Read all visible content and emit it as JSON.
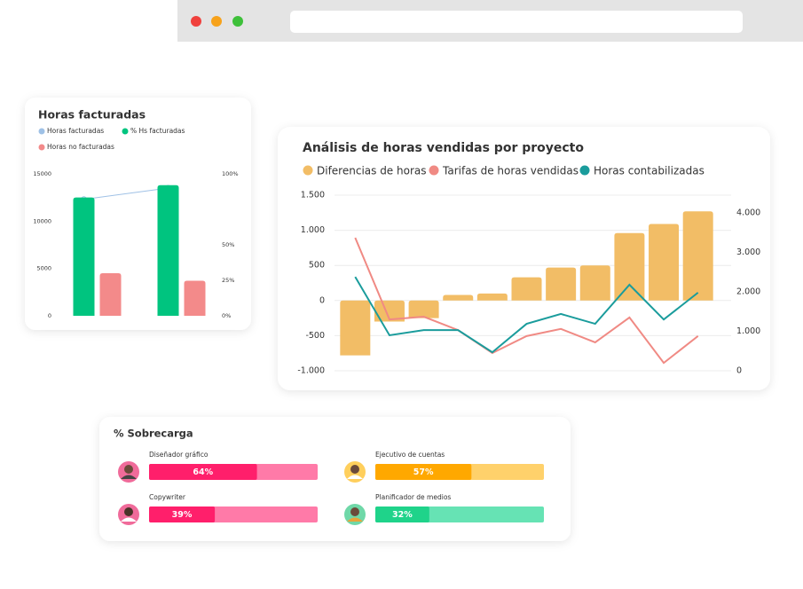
{
  "chart_data": [
    {
      "type": "bar",
      "title": "Horas facturadas",
      "categories": [
        null,
        null
      ],
      "series": [
        {
          "name": "Horas facturadas",
          "color": "#9fc1e6",
          "type": "line",
          "values": [
            12300,
            13500
          ]
        },
        {
          "name": "% Hs facturadas",
          "color": "#00c47f",
          "values": [
            12500,
            13800
          ]
        },
        {
          "name": "Horas no facturadas",
          "color": "#f38a8a",
          "values": [
            4500,
            3700
          ]
        }
      ],
      "ylim": [
        0,
        15000
      ],
      "yticks": [
        0,
        5000,
        10000,
        15000
      ],
      "y2lim": [
        0,
        100
      ],
      "y2ticks": [
        {
          "value": 0,
          "label": "0%"
        },
        {
          "value": 25,
          "label": "25%"
        },
        {
          "value": 50,
          "label": "50%"
        },
        {
          "value": 100,
          "label": "100%"
        }
      ]
    },
    {
      "type": "bar",
      "title": "Análisis de horas vendidas por proyecto",
      "categories": [
        null,
        null,
        null,
        null,
        null,
        null,
        null,
        null,
        null,
        null,
        null
      ],
      "series": [
        {
          "name": "Diferencias de horas",
          "color": "#f2bd66",
          "values": [
            -780,
            -300,
            -250,
            80,
            100,
            330,
            470,
            500,
            960,
            1090,
            1270
          ]
        },
        {
          "name": "Tarifas de horas vendidas",
          "color": "#f08a84",
          "type": "line",
          "axis": "y2",
          "values": [
            3370,
            1300,
            1370,
            1030,
            450,
            880,
            1060,
            720,
            1350,
            200,
            880
          ]
        },
        {
          "name": "Horas contabilizadas",
          "color": "#1a9c9c",
          "type": "line",
          "axis": "y2",
          "values": [
            2380,
            900,
            1030,
            1030,
            470,
            1190,
            1440,
            1190,
            2180,
            1300,
            1980
          ]
        }
      ],
      "ylim": [
        -1000,
        1500
      ],
      "yticks": [
        {
          "value": -1000,
          "label": "-1.000"
        },
        -500,
        0,
        500,
        {
          "value": 1000,
          "label": "1.000"
        },
        {
          "value": 1500,
          "label": "1.500"
        }
      ],
      "y2lim": [
        0,
        4000
      ],
      "y2ticks": [
        0,
        {
          "value": 1000,
          "label": "1.000"
        },
        {
          "value": 2000,
          "label": "2.000"
        },
        {
          "value": 3000,
          "label": "3.000"
        },
        {
          "value": 4000,
          "label": "4.000"
        }
      ],
      "grid": true
    },
    {
      "type": "progress",
      "title": "% Sobrecarga",
      "categories": [
        "Diseñador gráfico",
        "Ejecutivo de cuentas",
        "Copywriter",
        "Planificador de medios"
      ],
      "values": [
        64,
        57,
        39,
        32
      ],
      "value_labels": [
        "64%",
        "57%",
        "39%",
        "32%"
      ],
      "xlim": [
        0,
        100
      ],
      "colors": [
        "#ff1f6b",
        "#ffa800",
        "#ff1f6b",
        "#1fd38a"
      ],
      "track_colors": [
        "#ff7aa8",
        "#ffd16b",
        "#ff7aa8",
        "#66e3b4"
      ]
    }
  ]
}
